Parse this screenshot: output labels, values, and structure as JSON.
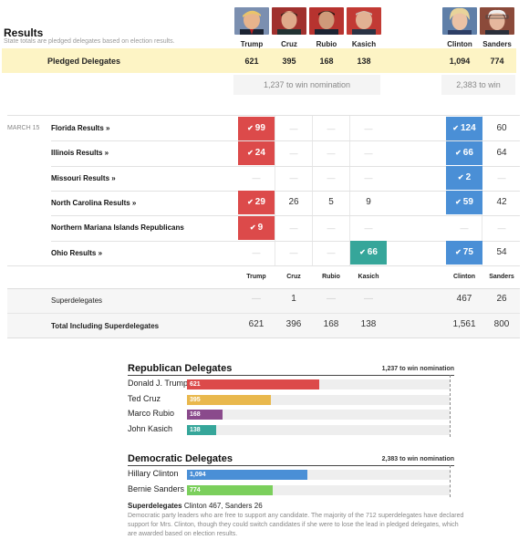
{
  "header": {
    "title": "Results",
    "subtitle": "State totals are pledged delegates based on election results."
  },
  "candidates": [
    {
      "name": "Trump",
      "color": "#dc4a4a"
    },
    {
      "name": "Cruz",
      "color": "#e9b84d"
    },
    {
      "name": "Rubio",
      "color": "#8a4a8c"
    },
    {
      "name": "Kasich",
      "color": "#36a69a"
    },
    {
      "name": "Clinton",
      "color": "#4a8fd6"
    },
    {
      "name": "Sanders",
      "color": "#7bcf5c"
    }
  ],
  "pledged": {
    "label": "Pledged Delegates",
    "values": [
      "621",
      "395",
      "168",
      "138",
      "1,094",
      "774"
    ],
    "rep_win": "1,237 to win nomination",
    "dem_win": "2,383 to win"
  },
  "date_label": "MARCH 15",
  "states": [
    {
      "name": "Florida Results »",
      "values": [
        "99",
        "—",
        "—",
        "—",
        "124",
        "60"
      ]
    },
    {
      "name": "Illinois Results »",
      "values": [
        "24",
        "—",
        "—",
        "—",
        "66",
        "64"
      ]
    },
    {
      "name": "Missouri Results »",
      "values": [
        "—",
        "—",
        "—",
        "—",
        "2",
        "—"
      ]
    },
    {
      "name": "North Carolina Results »",
      "values": [
        "29",
        "26",
        "5",
        "9",
        "59",
        "42"
      ]
    },
    {
      "name": "Northern Mariana Islands Republicans",
      "values": [
        "9",
        "—",
        "—",
        "—",
        "—",
        "—"
      ]
    },
    {
      "name": "Ohio Results »",
      "values": [
        "—",
        "—",
        "—",
        "66",
        "75",
        "54"
      ]
    }
  ],
  "superdelegates": {
    "label": "Superdelegates",
    "values": [
      "—",
      "1",
      "—",
      "—",
      "467",
      "26"
    ]
  },
  "total": {
    "label": "Total Including Superdelegates",
    "values": [
      "621",
      "396",
      "168",
      "138",
      "1,561",
      "800"
    ]
  },
  "republican": {
    "title": "Republican Delegates",
    "win_label": "1,237 to win nomination",
    "threshold": 1237,
    "bars": [
      {
        "name": "Donald J. Trump",
        "value": 621,
        "label": "621",
        "color": "#dc4a4a"
      },
      {
        "name": "Ted Cruz",
        "value": 395,
        "label": "395",
        "color": "#e9b84d"
      },
      {
        "name": "Marco Rubio",
        "value": 168,
        "label": "168",
        "color": "#8a4a8c"
      },
      {
        "name": "John Kasich",
        "value": 138,
        "label": "138",
        "color": "#36a69a"
      }
    ]
  },
  "democratic": {
    "title": "Democratic Delegates",
    "win_label": "2,383 to win nomination",
    "threshold": 2383,
    "bars": [
      {
        "name": "Hillary Clinton",
        "value": 1094,
        "label": "1,094",
        "color": "#4a8fd6"
      },
      {
        "name": "Bernie Sanders",
        "value": 774,
        "label": "774",
        "color": "#7bcf5c"
      }
    ]
  },
  "superdelegates_note": {
    "label": "Superdelegates",
    "values": "Clinton 467, Sanders 26",
    "text": "Democratic party leaders who are free to support any candidate. The majority of the 712 superdelegates have declared support for Mrs. Clinton, though they could switch candidates if she were to lose the lead in pledged delegates, which are awarded based on election results."
  }
}
